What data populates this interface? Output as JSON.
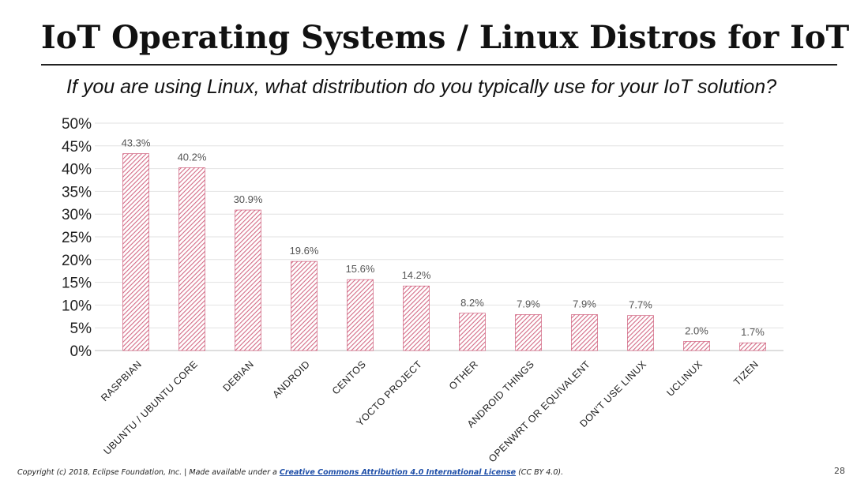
{
  "slide": {
    "title": "IoT Operating Systems / Linux Distros for IoT",
    "question": "If you are using Linux, what distribution do you typically use for your IoT solution?",
    "page_number": "28"
  },
  "footer": {
    "prefix": "Copyright (c) 2018, Eclipse Foundation, Inc. | Made available under a ",
    "link_text": "Creative Commons Attribution 4.0 International License",
    "suffix": " (CC BY 4.0)."
  },
  "colors": {
    "bar_stroke": "#c9486a",
    "bar_hatch": "#d36a85",
    "grid": "#e2e2e2"
  },
  "chart_data": {
    "type": "bar",
    "title": "",
    "xlabel": "",
    "ylabel": "",
    "ylim": [
      0,
      50
    ],
    "yticks": [
      "0%",
      "5%",
      "10%",
      "15%",
      "20%",
      "25%",
      "30%",
      "35%",
      "40%",
      "45%",
      "50%"
    ],
    "grid": true,
    "legend": "none",
    "categories": [
      "RASPBIAN",
      "UBUNTU / UBUNTU CORE",
      "DEBIAN",
      "ANDROID",
      "CENTOS",
      "YOCTO PROJECT",
      "OTHER",
      "ANDROID THINGS",
      "OPENWRT OR EQUIVALENT",
      "DON'T USE LINUX",
      "UCLINUX",
      "TIZEN"
    ],
    "values": [
      43.3,
      40.2,
      30.9,
      19.6,
      15.6,
      14.2,
      8.2,
      7.9,
      7.9,
      7.7,
      2.0,
      1.7
    ],
    "data_labels": [
      "43.3%",
      "40.2%",
      "30.9%",
      "19.6%",
      "15.6%",
      "14.2%",
      "8.2%",
      "7.9%",
      "7.9%",
      "7.7%",
      "2.0%",
      "1.7%"
    ]
  }
}
